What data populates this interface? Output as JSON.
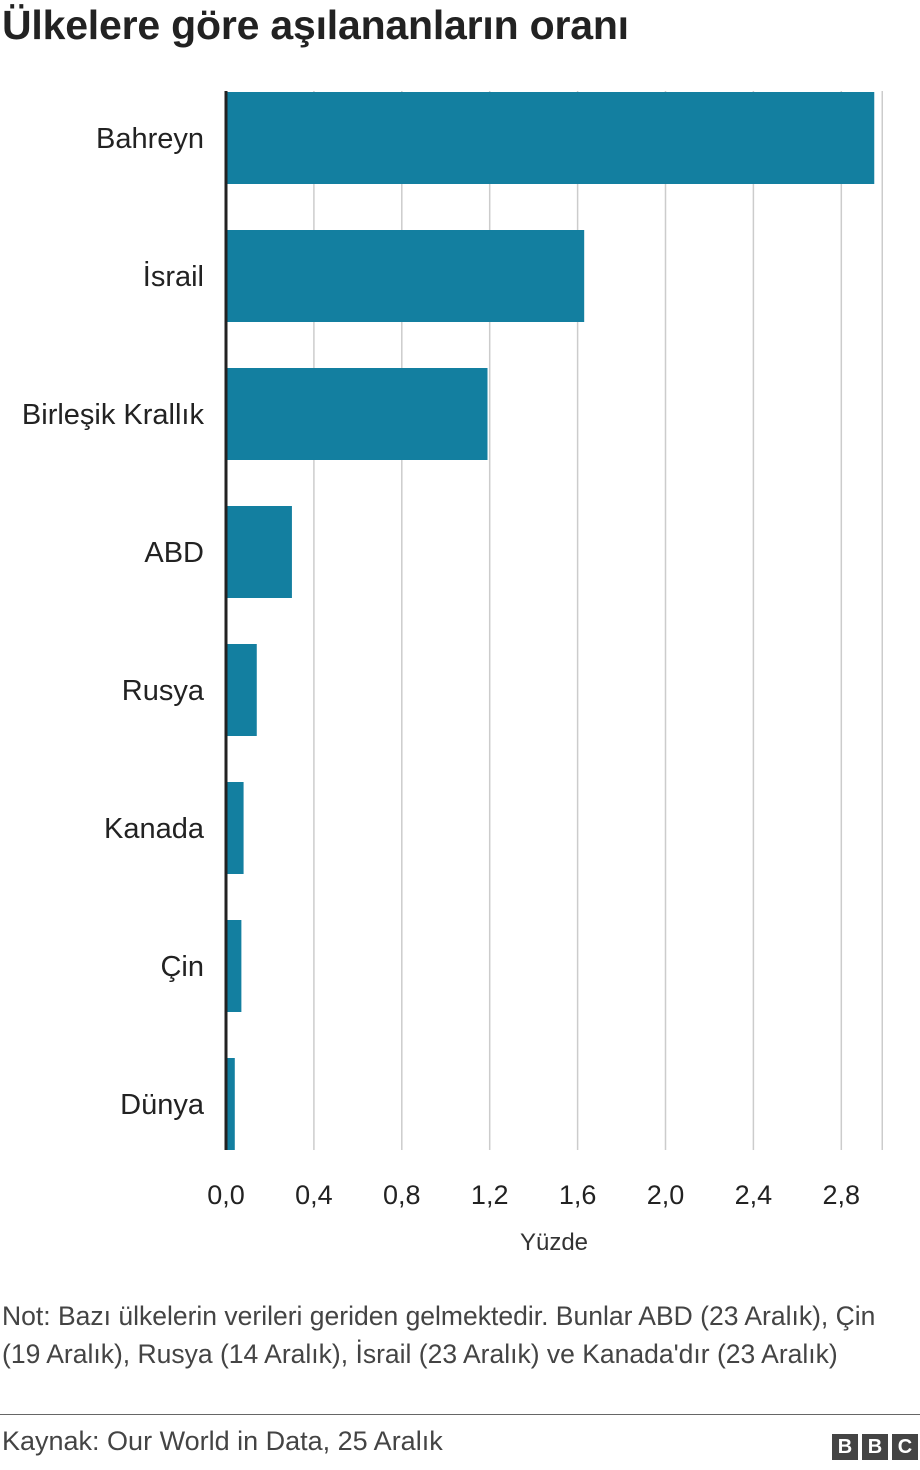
{
  "title": "Ülkelere göre aşılananların oranı",
  "chart_data": {
    "type": "bar",
    "orientation": "horizontal",
    "categories": [
      "Bahreyn",
      "İsrail",
      "Birleşik Krallık",
      "ABD",
      "Rusya",
      "Kanada",
      "Çin",
      "Dünya"
    ],
    "values": [
      2.95,
      1.63,
      1.19,
      0.3,
      0.14,
      0.08,
      0.07,
      0.04
    ],
    "xlabel": "Yüzde",
    "ylabel": "",
    "xlim": [
      0,
      3.0
    ],
    "ticks": [
      0,
      0.4,
      0.8,
      1.2,
      1.6,
      2.0,
      2.4,
      2.8
    ],
    "tick_labels": [
      "0,0",
      "0,4",
      "0,8",
      "1,2",
      "1,6",
      "2,0",
      "2,4",
      "2,8"
    ],
    "grid": true,
    "legend": "none",
    "bar_color": "#137fa0",
    "grid_color": "#cccccc"
  },
  "note": "Not: Bazı ülkelerin verileri geriden gelmektedir. Bunlar ABD (23 Aralık), Çin (19 Aralık), Rusya (14 Aralık), İsrail (23 Aralık) ve Kanada'dır (23 Aralık)",
  "source": "Kaynak: Our World in Data, 25 Aralık",
  "logo": {
    "letters": [
      "B",
      "B",
      "C"
    ]
  }
}
